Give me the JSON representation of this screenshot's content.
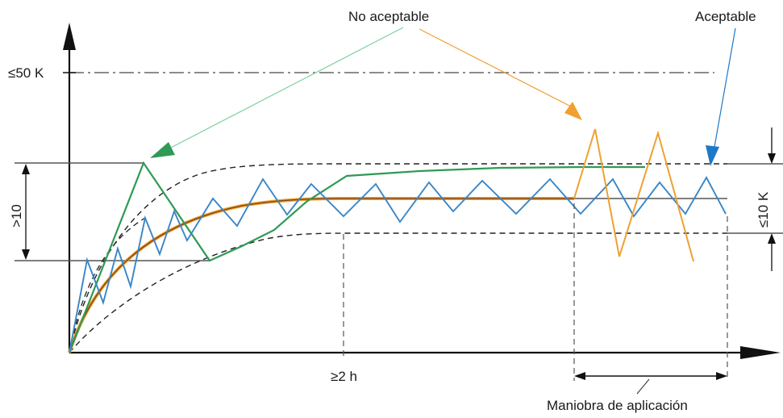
{
  "labels": {
    "not_acceptable": "No aceptable",
    "acceptable": "Aceptable",
    "max_temp": "≤50 K",
    "band_left": ">10",
    "band_right": "≤10 K",
    "time": "≥2 h",
    "operation": "Maniobra de aplicación"
  },
  "colors": {
    "axis": "#111111",
    "reference": "#555555",
    "green": "#2e9a55",
    "blue": "#3a86c6",
    "orange": "#f0a030",
    "brown": "#8a4a12",
    "arrow_green": "#2e9a55",
    "arrow_orange": "#f0a030",
    "arrow_blue": "#1e78c8"
  }
}
